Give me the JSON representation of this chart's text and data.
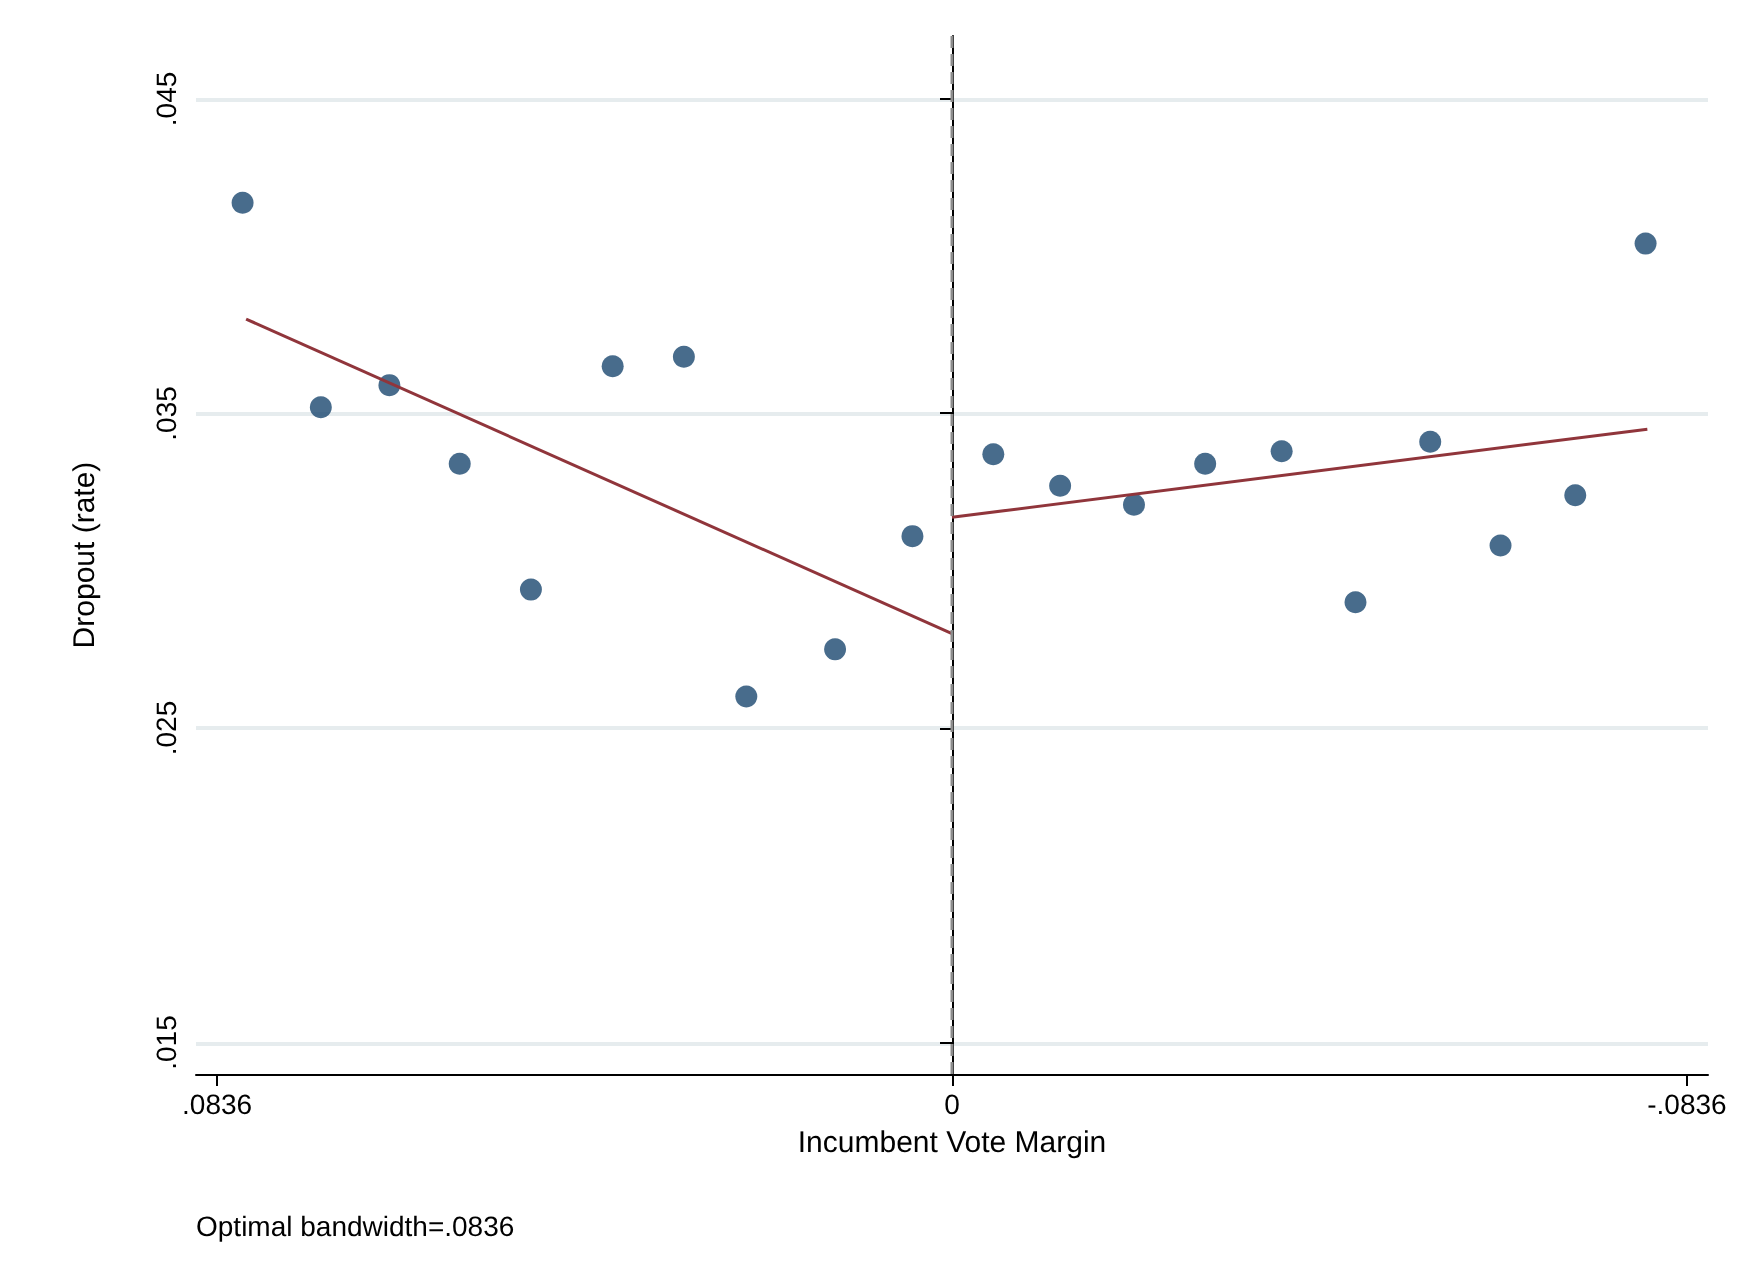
{
  "chart_data": {
    "type": "scatter",
    "xlabel": "Incumbent Vote Margin",
    "ylabel": "Dropout (rate)",
    "annotations": [
      "Optimal bandwidth=.0836"
    ],
    "xlim": [
      0.086,
      -0.086
    ],
    "xticks": [
      {
        "value": 0.0836,
        "label": ".0836"
      },
      0,
      {
        "value": -0.0836,
        "label": "-.0836"
      }
    ],
    "ylim": [
      0.014,
      0.047
    ],
    "yticks": [
      {
        "value": 0.015,
        "label": ".015"
      },
      {
        "value": 0.025,
        "label": ".025"
      },
      {
        "value": 0.035,
        "label": ".035"
      },
      {
        "value": 0.045,
        "label": ".045"
      }
    ],
    "grid": "y",
    "marker": "circle",
    "ref_lines": [
      {
        "axis": "x",
        "value": 0,
        "color": "#8c8c8c",
        "line_style": "dashed"
      }
    ],
    "series": [
      {
        "color": "#1a476f",
        "x": [
          0.0807,
          0.0718,
          0.064,
          0.056,
          0.0479,
          0.0386,
          0.0305,
          0.0234,
          0.0133,
          0.0045,
          -0.0047,
          -0.0123,
          -0.0207,
          -0.0288,
          -0.0375,
          -0.0459,
          -0.0544,
          -0.0624,
          -0.0709,
          -0.0789
        ],
        "values": [
          0.0417,
          0.0352,
          0.0359,
          0.0334,
          0.0294,
          0.0365,
          0.0368,
          0.026,
          0.0275,
          0.0311,
          0.0337,
          0.0327,
          0.0321,
          0.0334,
          0.0338,
          0.029,
          0.0341,
          0.0308,
          0.0324,
          0.0404
        ]
      },
      {
        "type": "line",
        "color": "#90353b",
        "marker": "none",
        "x": [
          0.0803,
          0
        ],
        "values": [
          0.038,
          0.028
        ]
      },
      {
        "type": "line",
        "color": "#90353b",
        "marker": "none",
        "x": [
          0,
          -0.0791
        ],
        "values": [
          0.0317,
          0.0345
        ]
      }
    ]
  }
}
